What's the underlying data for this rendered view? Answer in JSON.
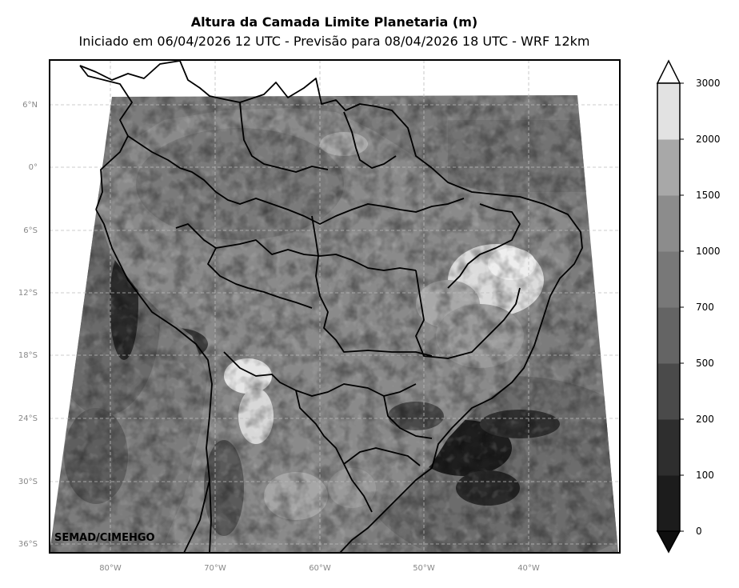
{
  "title": "Altura da Camada Limite Planetaria (m)",
  "subtitle": "Iniciado em 06/04/2026 12 UTC - Previsão para 08/04/2026 18 UTC - WRF 12km",
  "credit": "SEMAD/CIMEHGO",
  "lat_ticks": [
    "6°N",
    "0°",
    "6°S",
    "12°S",
    "18°S",
    "24°S",
    "30°S",
    "36°S"
  ],
  "lon_ticks": [
    "80°W",
    "70°W",
    "60°W",
    "50°W",
    "40°W"
  ],
  "colorbar": {
    "labels": [
      "0",
      "100",
      "200",
      "500",
      "700",
      "1000",
      "1500",
      "2000",
      "3000"
    ],
    "colors": [
      "#1c1c1c",
      "#2e2e2e",
      "#4a4a4a",
      "#646464",
      "#787878",
      "#8c8c8c",
      "#a8a8a8",
      "#e2e2e2"
    ],
    "extend": "both"
  }
}
